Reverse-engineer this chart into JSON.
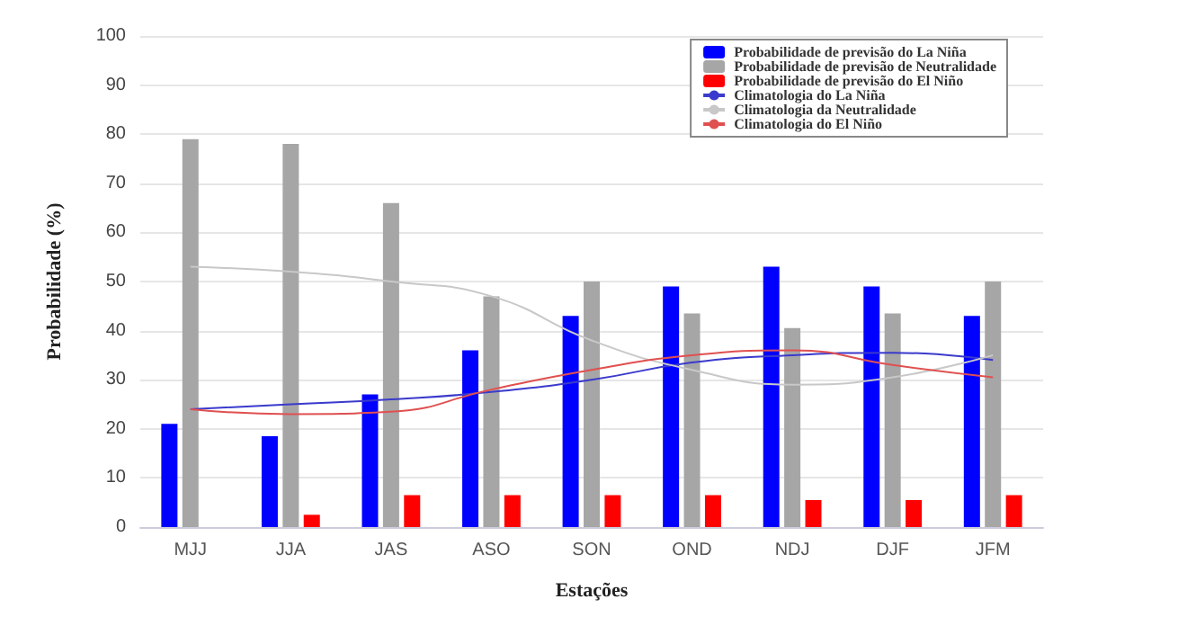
{
  "chart_data": {
    "type": "bar",
    "xlabel": "Estações",
    "ylabel": "Probabilidade (%)",
    "categories": [
      "MJJ",
      "JJA",
      "JAS",
      "ASO",
      "SON",
      "OND",
      "NDJ",
      "DJF",
      "JFM"
    ],
    "series": [
      {
        "name": "Probabilidade de previsão do La Niña",
        "color": "#0000ff",
        "values": [
          21,
          18.5,
          27,
          36,
          43,
          49,
          53,
          49,
          43
        ]
      },
      {
        "name": "Probabilidade de previsão de Neutralidade",
        "color": "#a6a6a6",
        "values": [
          79,
          78,
          66,
          47,
          50,
          43.5,
          40.5,
          43.5,
          50
        ]
      },
      {
        "name": "Probabilidade de previsão do El Niño",
        "color": "#ff0000",
        "values": [
          0,
          2.5,
          6.5,
          6.5,
          6.5,
          6.5,
          5.5,
          5.5,
          6.5
        ]
      },
      {
        "name": "Climatologia do La Niña",
        "type": "line",
        "color": "#3a3acc",
        "values": [
          24,
          25,
          26,
          27.5,
          30,
          33.5,
          35,
          35.5,
          34
        ]
      },
      {
        "name": "Climatologia da Neutralidade",
        "type": "line",
        "color": "#c8c8c8",
        "values": [
          53,
          52,
          50,
          47,
          38,
          32,
          29,
          30.5,
          35
        ]
      },
      {
        "name": "Climatologia do El Niño",
        "type": "line",
        "color": "#e05050",
        "values": [
          24,
          23,
          23.5,
          28,
          32,
          35,
          36,
          33,
          30.5
        ]
      }
    ],
    "ylim": [
      0,
      100
    ],
    "yticks": [
      0,
      10,
      20,
      30,
      40,
      50,
      60,
      70,
      80,
      90,
      100
    ],
    "grid": "y",
    "legend": "top right",
    "marker": "none"
  }
}
